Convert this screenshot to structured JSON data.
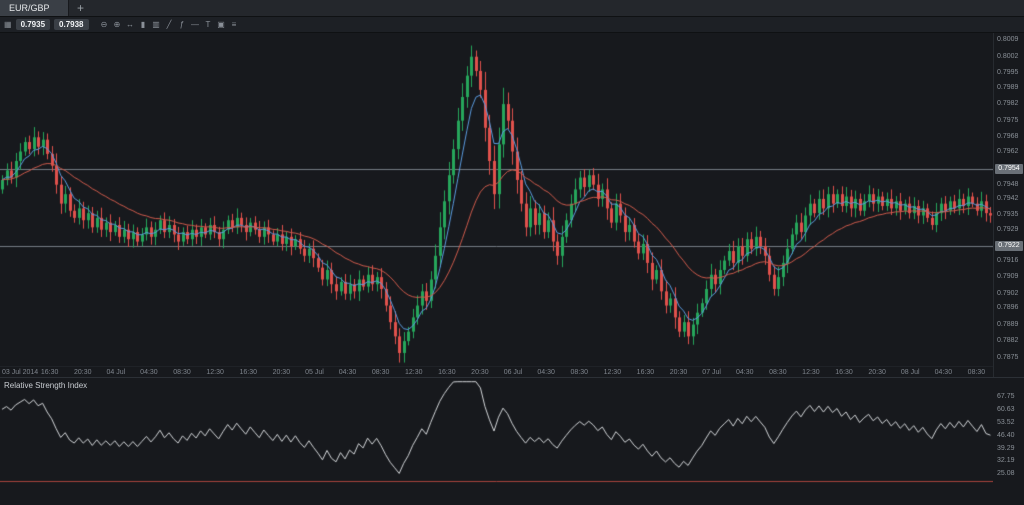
{
  "app": {
    "tabs": [
      {
        "label": "EUR/GBP",
        "active": true
      }
    ],
    "new_tab_label": "+"
  },
  "toolbar": {
    "quicktrade_icon_glyph": "▦",
    "sell_price": "0.7935",
    "buy_price": "0.7938",
    "icons": [
      {
        "name": "zoom-out-icon",
        "glyph": "⊖"
      },
      {
        "name": "zoom-in-icon",
        "glyph": "⊕"
      },
      {
        "name": "expand-icon",
        "glyph": "↔"
      },
      {
        "name": "candlestick-chart-icon",
        "glyph": "▮"
      },
      {
        "name": "bar-chart-icon",
        "glyph": "▥"
      },
      {
        "name": "trendline-icon",
        "glyph": "╱"
      },
      {
        "name": "indicators-icon",
        "glyph": "ƒ"
      },
      {
        "name": "horizontal-line-icon",
        "glyph": "―"
      },
      {
        "name": "text-tool-icon",
        "glyph": "T"
      },
      {
        "name": "snapshot-icon",
        "glyph": "▣"
      },
      {
        "name": "menu-icon",
        "glyph": "≡"
      }
    ]
  },
  "chart_data": {
    "type": "candlestick",
    "symbol": "EUR/GBP",
    "colors": {
      "up": "#26a65b",
      "down": "#e0514c",
      "ma_fast": "#5b9ce0",
      "ma_slow": "#cf5b4c",
      "level_line": "#767c84",
      "rsi_line": "#d4d7da",
      "rsi_level_line": "#a8433d",
      "background": "#17191d"
    },
    "price_axis": {
      "min": 0.78715,
      "max": 0.8012,
      "ticks": [
        {
          "label": "0.8009",
          "value": 0.8009
        },
        {
          "label": "0.8002",
          "value": 0.8002
        },
        {
          "label": "0.7995",
          "value": 0.7995
        },
        {
          "label": "0.7989",
          "value": 0.7989
        },
        {
          "label": "0.7982",
          "value": 0.7982
        },
        {
          "label": "0.7975",
          "value": 0.7975
        },
        {
          "label": "0.7968",
          "value": 0.7968
        },
        {
          "label": "0.7962",
          "value": 0.7962
        },
        {
          "label": "0.7948",
          "value": 0.7948
        },
        {
          "label": "0.7942",
          "value": 0.7942
        },
        {
          "label": "0.7935",
          "value": 0.7935
        },
        {
          "label": "0.7929",
          "value": 0.7929
        },
        {
          "label": "0.7916",
          "value": 0.7916
        },
        {
          "label": "0.7909",
          "value": 0.7909
        },
        {
          "label": "0.7902",
          "value": 0.7902
        },
        {
          "label": "0.7896",
          "value": 0.7896
        },
        {
          "label": "0.7889",
          "value": 0.7889
        },
        {
          "label": "0.7882",
          "value": 0.7882
        },
        {
          "label": "0.7875",
          "value": 0.7875
        }
      ]
    },
    "levels": [
      {
        "label": "0.7954",
        "value": 0.79545
      },
      {
        "label": "0.7922",
        "value": 0.7922
      }
    ],
    "time_axis": {
      "labels": [
        "03 Jul 2014",
        "16:30",
        "20:30",
        "04 Jul",
        "04:30",
        "08:30",
        "12:30",
        "16:30",
        "20:30",
        "05 Jul",
        "04:30",
        "08:30",
        "12:30",
        "16:30",
        "20:30",
        "06 Jul",
        "04:30",
        "08:30",
        "12:30",
        "16:30",
        "20:30",
        "07 Jul",
        "04:30",
        "08:30",
        "12:30",
        "16:30",
        "20:30",
        "08 Jul",
        "04:30",
        "08:30"
      ]
    },
    "candles": {
      "first_open_pips": 7946,
      "closes_pips": [
        7950,
        7954,
        7951,
        7958,
        7962,
        7966,
        7963,
        7968,
        7964,
        7967,
        7961,
        7956,
        7948,
        7940,
        7944,
        7937,
        7934,
        7938,
        7933,
        7936,
        7930,
        7934,
        7929,
        7932,
        7928,
        7931,
        7926,
        7929,
        7925,
        7928,
        7924,
        7927,
        7930,
        7926,
        7929,
        7933,
        7928,
        7931,
        7927,
        7924,
        7928,
        7925,
        7929,
        7926,
        7930,
        7927,
        7931,
        7928,
        7925,
        7929,
        7933,
        7930,
        7934,
        7931,
        7928,
        7932,
        7929,
        7926,
        7930,
        7927,
        7924,
        7927,
        7923,
        7926,
        7922,
        7925,
        7921,
        7918,
        7921,
        7917,
        7913,
        7908,
        7912,
        7906,
        7903,
        7907,
        7902,
        7906,
        7903,
        7908,
        7905,
        7910,
        7906,
        7909,
        7904,
        7897,
        7890,
        7884,
        7877,
        7882,
        7886,
        7892,
        7897,
        7903,
        7899,
        7908,
        7918,
        7930,
        7941,
        7952,
        7963,
        7975,
        7985,
        7994,
        8002,
        7996,
        7988,
        7972,
        7958,
        7944,
        7965,
        7982,
        7975,
        7962,
        7950,
        7940,
        7930,
        7938,
        7931,
        7936,
        7928,
        7933,
        7924,
        7918,
        7926,
        7933,
        7940,
        7946,
        7951,
        7947,
        7952,
        7948,
        7942,
        7946,
        7938,
        7932,
        7940,
        7935,
        7928,
        7931,
        7924,
        7919,
        7923,
        7915,
        7908,
        7912,
        7903,
        7897,
        7900,
        7892,
        7886,
        7890,
        7884,
        7889,
        7894,
        7898,
        7904,
        7910,
        7906,
        7912,
        7916,
        7920,
        7915,
        7922,
        7918,
        7925,
        7921,
        7926,
        7922,
        7918,
        7910,
        7904,
        7909,
        7915,
        7921,
        7927,
        7932,
        7928,
        7935,
        7940,
        7936,
        7942,
        7938,
        7944,
        7940,
        7944,
        7939,
        7943,
        7938,
        7942,
        7937,
        7941,
        7944,
        7940,
        7943,
        7939,
        7942,
        7938,
        7941,
        7937,
        7940,
        7936,
        7939,
        7935,
        7938,
        7934,
        7931,
        7936,
        7940,
        7937,
        7941,
        7938,
        7942,
        7939,
        7943,
        7940,
        7937,
        7941,
        7936,
        7935
      ]
    },
    "overlays": [
      {
        "name": "ema-fast",
        "alpha": 0.3,
        "color_key": "ma_fast"
      },
      {
        "name": "ema-slow",
        "alpha": 0.08,
        "color_key": "ma_slow"
      }
    ],
    "rsi": {
      "title": "Relative Strength Index",
      "period": 14,
      "range": [
        8.5,
        78.5
      ],
      "level": 22,
      "ticks": [
        {
          "label": "67.75",
          "value": 67.75
        },
        {
          "label": "60.63",
          "value": 60.63
        },
        {
          "label": "53.52",
          "value": 53.52
        },
        {
          "label": "46.40",
          "value": 46.4
        },
        {
          "label": "39.29",
          "value": 39.29
        },
        {
          "label": "32.19",
          "value": 32.19
        },
        {
          "label": "25.08",
          "value": 25.08
        }
      ]
    }
  }
}
